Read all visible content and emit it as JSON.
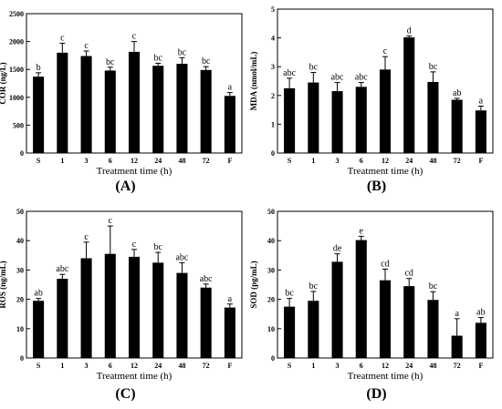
{
  "chart_data": [
    {
      "type": "bar",
      "panel_label": "(A)",
      "title": "",
      "xlabel": "Treatment  time (h)",
      "ylabel": "COR (ng/L)",
      "categories": [
        "S",
        "1",
        "3",
        "6",
        "12",
        "24",
        "48",
        "72",
        "F"
      ],
      "values": [
        1370,
        1800,
        1740,
        1480,
        1815,
        1565,
        1600,
        1490,
        1025
      ],
      "errors": [
        70,
        170,
        90,
        60,
        185,
        45,
        110,
        60,
        60
      ],
      "letters": [
        "b",
        "c",
        "c",
        "bc",
        "c",
        "bc",
        "bc",
        "bc",
        "a"
      ],
      "ylim": [
        0,
        2500
      ],
      "yticks": [
        "0",
        "500",
        "1000",
        "1500",
        "2000",
        "2500"
      ]
    },
    {
      "type": "bar",
      "panel_label": "(B)",
      "title": "",
      "xlabel": "Treatment  time (h)",
      "ylabel": "MDA (nmol/mL)",
      "categories": [
        "S",
        "1",
        "3",
        "6",
        "12",
        "24",
        "48",
        "72",
        "F"
      ],
      "values": [
        2.25,
        2.45,
        2.15,
        2.3,
        2.9,
        4.02,
        2.47,
        1.85,
        1.48
      ],
      "errors": [
        0.35,
        0.35,
        0.3,
        0.15,
        0.45,
        0.05,
        0.35,
        0.05,
        0.15
      ],
      "letters": [
        "abc",
        "bc",
        "abc",
        "abc",
        "c",
        "d",
        "bc",
        "ab",
        "a"
      ],
      "ylim": [
        0,
        5
      ],
      "yticks": [
        "0",
        "1",
        "2",
        "3",
        "4",
        "5"
      ]
    },
    {
      "type": "bar",
      "panel_label": "(C)",
      "title": "",
      "xlabel": "Treatment  time (h)",
      "ylabel": "ROS (ng/mL)",
      "categories": [
        "S",
        "1",
        "3",
        "6",
        "12",
        "24",
        "48",
        "72",
        "F"
      ],
      "values": [
        19.5,
        27,
        34,
        35.5,
        34.5,
        32.5,
        29,
        24,
        17.2
      ],
      "errors": [
        0.8,
        1.5,
        5.5,
        9.5,
        2.5,
        3.5,
        3.5,
        1.2,
        1.2
      ],
      "letters": [
        "ab",
        "abc",
        "c",
        "c",
        "c",
        "bc",
        "abc",
        "abc",
        "a"
      ],
      "ylim": [
        0,
        50
      ],
      "yticks": [
        "0",
        "10",
        "20",
        "30",
        "40",
        "50"
      ]
    },
    {
      "type": "bar",
      "panel_label": "(D)",
      "title": "",
      "xlabel": "Treatment  time (h)",
      "ylabel": "SOD (pg/mL)",
      "categories": [
        "S",
        "1",
        "3",
        "6",
        "12",
        "24",
        "48",
        "72",
        "F"
      ],
      "values": [
        17.5,
        19.5,
        32.8,
        40.2,
        26.5,
        24.5,
        19.8,
        7.6,
        12
      ],
      "errors": [
        2.8,
        3.2,
        2.7,
        1.3,
        3.8,
        2.6,
        2.8,
        5.8,
        1.8
      ],
      "letters": [
        "bc",
        "bc",
        "de",
        "e",
        "cd",
        "cd",
        "bc",
        "a",
        "ab"
      ],
      "ylim": [
        0,
        50
      ],
      "yticks": [
        "0",
        "10",
        "20",
        "30",
        "40",
        "50"
      ]
    }
  ]
}
